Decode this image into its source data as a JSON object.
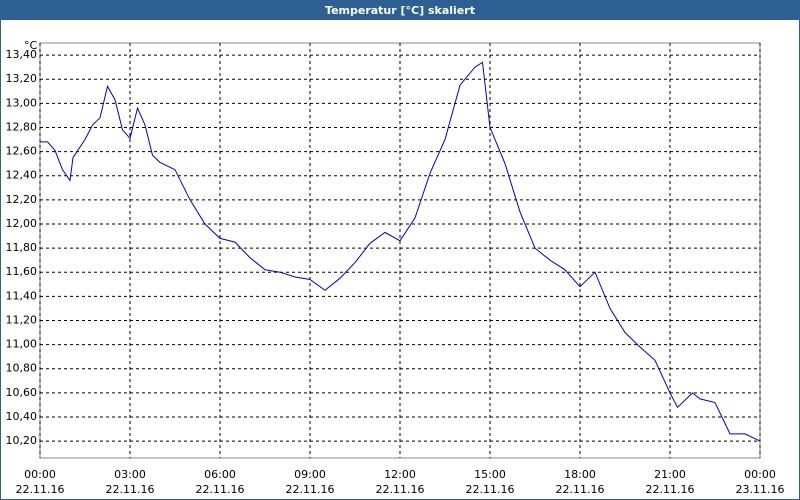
{
  "chart_data": {
    "type": "line",
    "title": "Temperatur [°C] skaliert",
    "y_label": "°C",
    "x": [
      0,
      0.25,
      0.5,
      0.75,
      1,
      1.1,
      1.5,
      1.75,
      2,
      2.25,
      2.5,
      2.75,
      3,
      3.25,
      3.5,
      3.75,
      4,
      4.5,
      5,
      5.5,
      6,
      6.5,
      7,
      7.5,
      8,
      8.5,
      9,
      9.5,
      10,
      10.5,
      11,
      11.5,
      12,
      12.5,
      13,
      13.5,
      14,
      14.5,
      14.75,
      15,
      15.5,
      16,
      16.5,
      17,
      17.5,
      18,
      18.5,
      19,
      19.5,
      20,
      20.5,
      21,
      21.25,
      21.75,
      22,
      22.5,
      23,
      23.5,
      24
    ],
    "series": [
      {
        "name": "Temperatur",
        "color": "#0000cc",
        "values": [
          12.68,
          12.68,
          12.61,
          12.45,
          12.36,
          12.55,
          12.7,
          12.82,
          12.88,
          13.14,
          13.03,
          12.78,
          12.71,
          12.96,
          12.82,
          12.57,
          12.51,
          12.45,
          12.2,
          12.0,
          11.88,
          11.85,
          11.72,
          11.62,
          11.6,
          11.56,
          11.54,
          11.45,
          11.55,
          11.68,
          11.84,
          11.93,
          11.86,
          12.05,
          12.42,
          12.7,
          13.15,
          13.3,
          13.34,
          12.8,
          12.5,
          12.1,
          11.8,
          11.7,
          11.62,
          11.48,
          11.6,
          11.3,
          11.1,
          10.98,
          10.87,
          10.6,
          10.48,
          10.6,
          10.55,
          10.52,
          10.26,
          10.26,
          10.2
        ]
      }
    ],
    "xlim": [
      0,
      24
    ],
    "xticks": [
      {
        "value": 0,
        "label": "00:00",
        "date": "22.11.16"
      },
      {
        "value": 3,
        "label": "03:00",
        "date": "22.11.16"
      },
      {
        "value": 6,
        "label": "06:00",
        "date": "22.11.16"
      },
      {
        "value": 9,
        "label": "09:00",
        "date": "22.11.16"
      },
      {
        "value": 12,
        "label": "12:00",
        "date": "22.11.16"
      },
      {
        "value": 15,
        "label": "15:00",
        "date": "22.11.16"
      },
      {
        "value": 18,
        "label": "18:00",
        "date": "22.11.16"
      },
      {
        "value": 21,
        "label": "21:00",
        "date": "22.11.16"
      },
      {
        "value": 24,
        "label": "00:00",
        "date": "23.11.16"
      }
    ],
    "ylim": [
      10.06,
      13.5
    ],
    "yticks": [
      {
        "value": 10.2,
        "label": "10,20"
      },
      {
        "value": 10.4,
        "label": "10,40"
      },
      {
        "value": 10.6,
        "label": "10,60"
      },
      {
        "value": 10.8,
        "label": "10,80"
      },
      {
        "value": 11.0,
        "label": "11,00"
      },
      {
        "value": 11.2,
        "label": "11,20"
      },
      {
        "value": 11.4,
        "label": "11,40"
      },
      {
        "value": 11.6,
        "label": "11,60"
      },
      {
        "value": 11.8,
        "label": "11,80"
      },
      {
        "value": 12.0,
        "label": "12,00"
      },
      {
        "value": 12.2,
        "label": "12,20"
      },
      {
        "value": 12.4,
        "label": "12,40"
      },
      {
        "value": 12.6,
        "label": "12,60"
      },
      {
        "value": 12.8,
        "label": "12,80"
      },
      {
        "value": 13.0,
        "label": "13,00"
      },
      {
        "value": 13.2,
        "label": "13,20"
      },
      {
        "value": 13.4,
        "label": "13,40"
      }
    ],
    "grid": true
  }
}
